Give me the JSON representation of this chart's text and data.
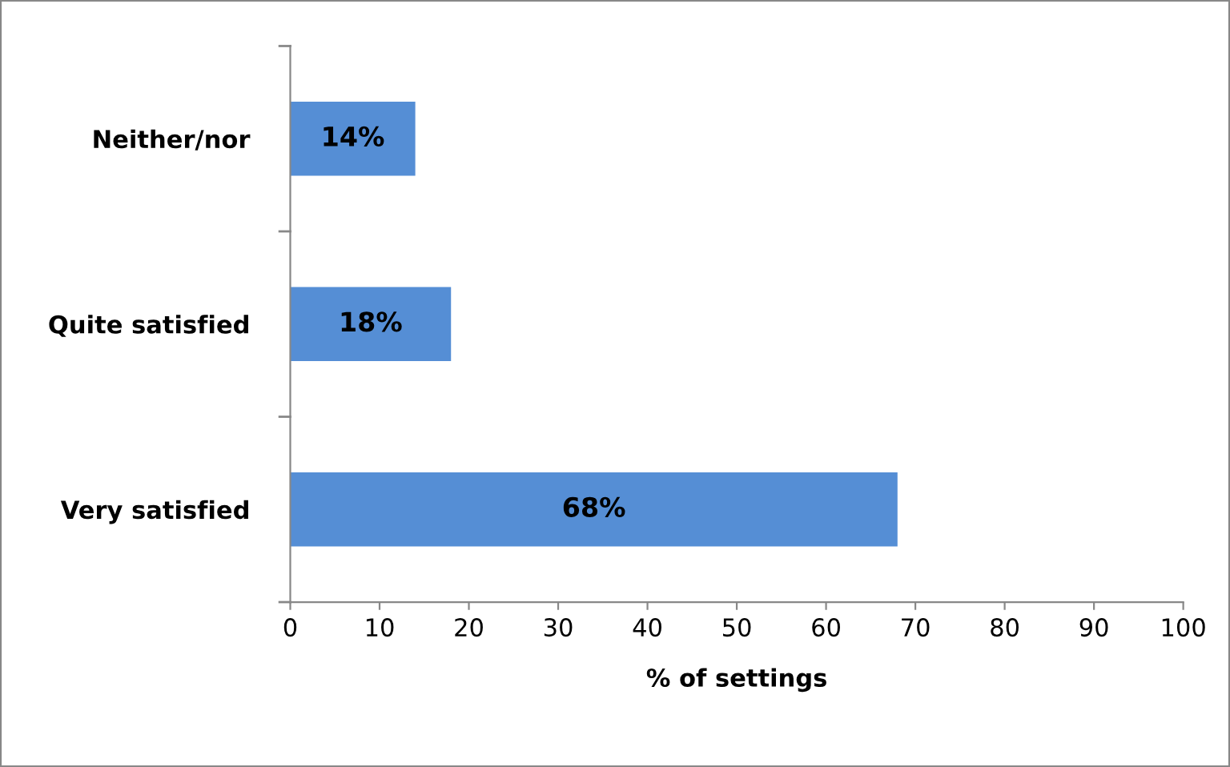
{
  "chart_data": {
    "type": "bar",
    "orientation": "horizontal",
    "categories": [
      "Neither/nor",
      "Quite satisfied",
      "Very satisfied"
    ],
    "values": [
      14,
      18,
      68
    ],
    "color": "#558ed5",
    "value_labels": [
      "14%",
      "18%",
      "68%"
    ],
    "xlabel": "% of settings",
    "xlim": [
      0,
      100
    ],
    "xticks": [
      0,
      10,
      20,
      30,
      40,
      50,
      60,
      70,
      80,
      90,
      100
    ],
    "grid": false,
    "legend": false
  }
}
